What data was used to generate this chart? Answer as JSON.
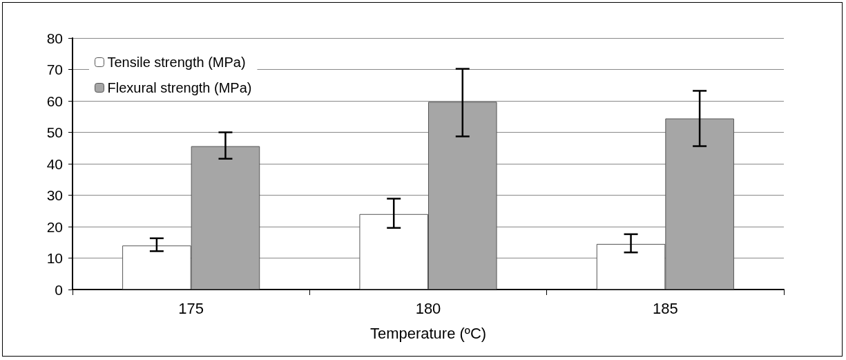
{
  "chart_data": {
    "type": "bar",
    "xlabel": "Temperature (ºC)",
    "categories": [
      "175",
      "180",
      "185"
    ],
    "series": [
      {
        "name": "Tensile strength (MPa)",
        "color": "#ffffff",
        "values": [
          14.0,
          24.0,
          14.5
        ],
        "errors": [
          [
            12.2,
            16.3
          ],
          [
            19.6,
            28.9
          ],
          [
            11.8,
            17.6
          ]
        ]
      },
      {
        "name": "Flexural strength (MPa)",
        "color": "#a6a6a6",
        "values": [
          45.6,
          59.7,
          54.4
        ],
        "errors": [
          [
            41.6,
            50.0
          ],
          [
            48.7,
            70.2
          ],
          [
            45.6,
            63.2
          ]
        ]
      }
    ],
    "ylim": [
      0,
      80
    ],
    "yticks": [
      0,
      10,
      20,
      30,
      40,
      50,
      60,
      70,
      80
    ],
    "grid": "y",
    "legend": "top left"
  }
}
